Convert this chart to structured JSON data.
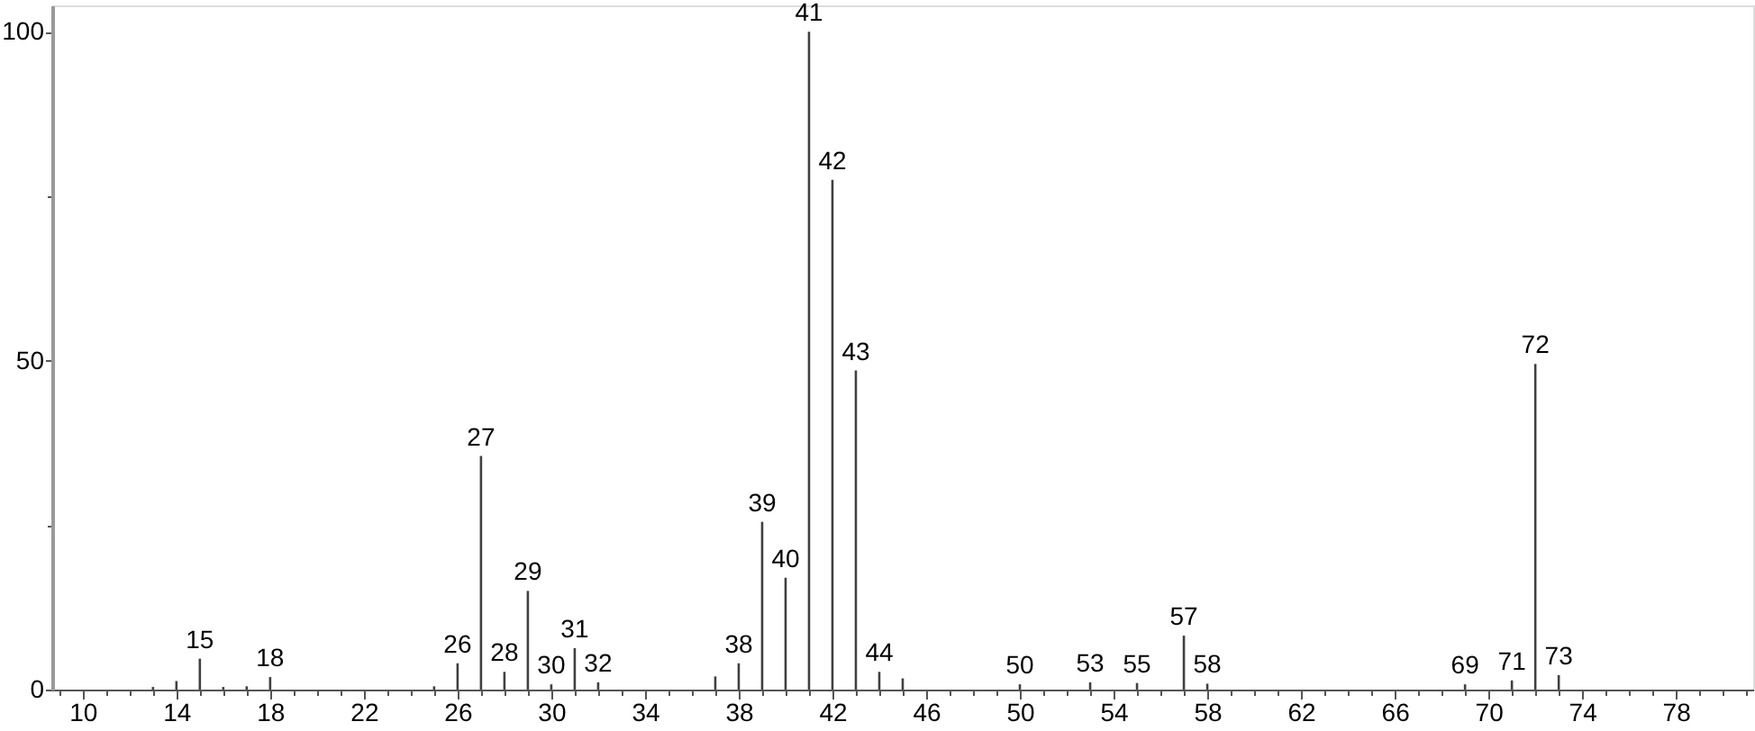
{
  "chart_data": {
    "type": "bar",
    "color": "#404040",
    "x": [
      13,
      14,
      15,
      16,
      17,
      18,
      25,
      26,
      27,
      28,
      29,
      30,
      31,
      32,
      37,
      38,
      39,
      40,
      41,
      42,
      43,
      44,
      45,
      50,
      53,
      55,
      57,
      58,
      69,
      71,
      72,
      73
    ],
    "values": [
      0.4,
      1.3,
      4.7,
      0.4,
      0.5,
      1.9,
      0.5,
      4.0,
      35.5,
      2.7,
      15.0,
      0.8,
      6.3,
      1.1,
      2.0,
      4.0,
      25.5,
      17.0,
      100,
      77.5,
      48.5,
      2.7,
      1.7,
      0.8,
      1.1,
      1.0,
      8.2,
      0.9,
      0.8,
      1.4,
      49.5,
      2.2
    ],
    "annotations": [
      {
        "text": "15",
        "x": 15,
        "y": 4.7
      },
      {
        "text": "18",
        "x": 18,
        "y": 1.9
      },
      {
        "text": "26",
        "x": 26,
        "y": 4.0
      },
      {
        "text": "27",
        "x": 27,
        "y": 35.5
      },
      {
        "text": "28",
        "x": 28,
        "y": 2.7
      },
      {
        "text": "29",
        "x": 29,
        "y": 15.0
      },
      {
        "text": "30",
        "x": 30,
        "y": 0.8
      },
      {
        "text": "31",
        "x": 31,
        "y": 6.3
      },
      {
        "text": "32",
        "x": 32,
        "y": 1.1
      },
      {
        "text": "38",
        "x": 38,
        "y": 4.0
      },
      {
        "text": "39",
        "x": 39,
        "y": 25.5
      },
      {
        "text": "40",
        "x": 40,
        "y": 17.0
      },
      {
        "text": "41",
        "x": 41,
        "y": 100
      },
      {
        "text": "42",
        "x": 42,
        "y": 77.5
      },
      {
        "text": "43",
        "x": 43,
        "y": 48.5
      },
      {
        "text": "44",
        "x": 44,
        "y": 2.7
      },
      {
        "text": "50",
        "x": 50,
        "y": 0.8
      },
      {
        "text": "53",
        "x": 53,
        "y": 1.1
      },
      {
        "text": "55",
        "x": 55,
        "y": 1.0
      },
      {
        "text": "57",
        "x": 57,
        "y": 8.2
      },
      {
        "text": "58",
        "x": 58,
        "y": 0.9
      },
      {
        "text": "69",
        "x": 69,
        "y": 0.8
      },
      {
        "text": "71",
        "x": 71,
        "y": 1.4
      },
      {
        "text": "72",
        "x": 72,
        "y": 49.5
      },
      {
        "text": "73",
        "x": 73,
        "y": 2.2
      }
    ],
    "xlim": [
      8.7,
      81.3
    ],
    "xticks": [
      {
        "value": 9,
        "label": null
      },
      10,
      {
        "value": 11,
        "label": null
      },
      {
        "value": 12,
        "label": null
      },
      {
        "value": 13,
        "label": null
      },
      14,
      {
        "value": 15,
        "label": null
      },
      {
        "value": 16,
        "label": null
      },
      {
        "value": 17,
        "label": null
      },
      18,
      {
        "value": 19,
        "label": null
      },
      {
        "value": 20,
        "label": null
      },
      {
        "value": 21,
        "label": null
      },
      22,
      {
        "value": 23,
        "label": null
      },
      {
        "value": 24,
        "label": null
      },
      {
        "value": 25,
        "label": null
      },
      26,
      {
        "value": 27,
        "label": null
      },
      {
        "value": 28,
        "label": null
      },
      {
        "value": 29,
        "label": null
      },
      30,
      {
        "value": 31,
        "label": null
      },
      {
        "value": 32,
        "label": null
      },
      {
        "value": 33,
        "label": null
      },
      34,
      {
        "value": 35,
        "label": null
      },
      {
        "value": 36,
        "label": null
      },
      {
        "value": 37,
        "label": null
      },
      38,
      {
        "value": 39,
        "label": null
      },
      {
        "value": 40,
        "label": null
      },
      {
        "value": 41,
        "label": null
      },
      42,
      {
        "value": 43,
        "label": null
      },
      {
        "value": 44,
        "label": null
      },
      {
        "value": 45,
        "label": null
      },
      46,
      {
        "value": 47,
        "label": null
      },
      {
        "value": 48,
        "label": null
      },
      {
        "value": 49,
        "label": null
      },
      50,
      {
        "value": 51,
        "label": null
      },
      {
        "value": 52,
        "label": null
      },
      {
        "value": 53,
        "label": null
      },
      54,
      {
        "value": 55,
        "label": null
      },
      {
        "value": 56,
        "label": null
      },
      {
        "value": 57,
        "label": null
      },
      58,
      {
        "value": 59,
        "label": null
      },
      {
        "value": 60,
        "label": null
      },
      {
        "value": 61,
        "label": null
      },
      62,
      {
        "value": 63,
        "label": null
      },
      {
        "value": 64,
        "label": null
      },
      {
        "value": 65,
        "label": null
      },
      66,
      {
        "value": 67,
        "label": null
      },
      {
        "value": 68,
        "label": null
      },
      {
        "value": 69,
        "label": null
      },
      70,
      {
        "value": 71,
        "label": null
      },
      {
        "value": 72,
        "label": null
      },
      {
        "value": 73,
        "label": null
      },
      74,
      {
        "value": 75,
        "label": null
      },
      {
        "value": 76,
        "label": null
      },
      {
        "value": 77,
        "label": null
      },
      78,
      {
        "value": 79,
        "label": null
      },
      {
        "value": 80,
        "label": null
      },
      {
        "value": 81,
        "label": null
      }
    ],
    "ylim": [
      0,
      104
    ],
    "yticks": [
      0,
      {
        "value": 25,
        "label": null
      },
      50,
      {
        "value": 75,
        "label": null
      },
      100
    ],
    "grid": false
  }
}
